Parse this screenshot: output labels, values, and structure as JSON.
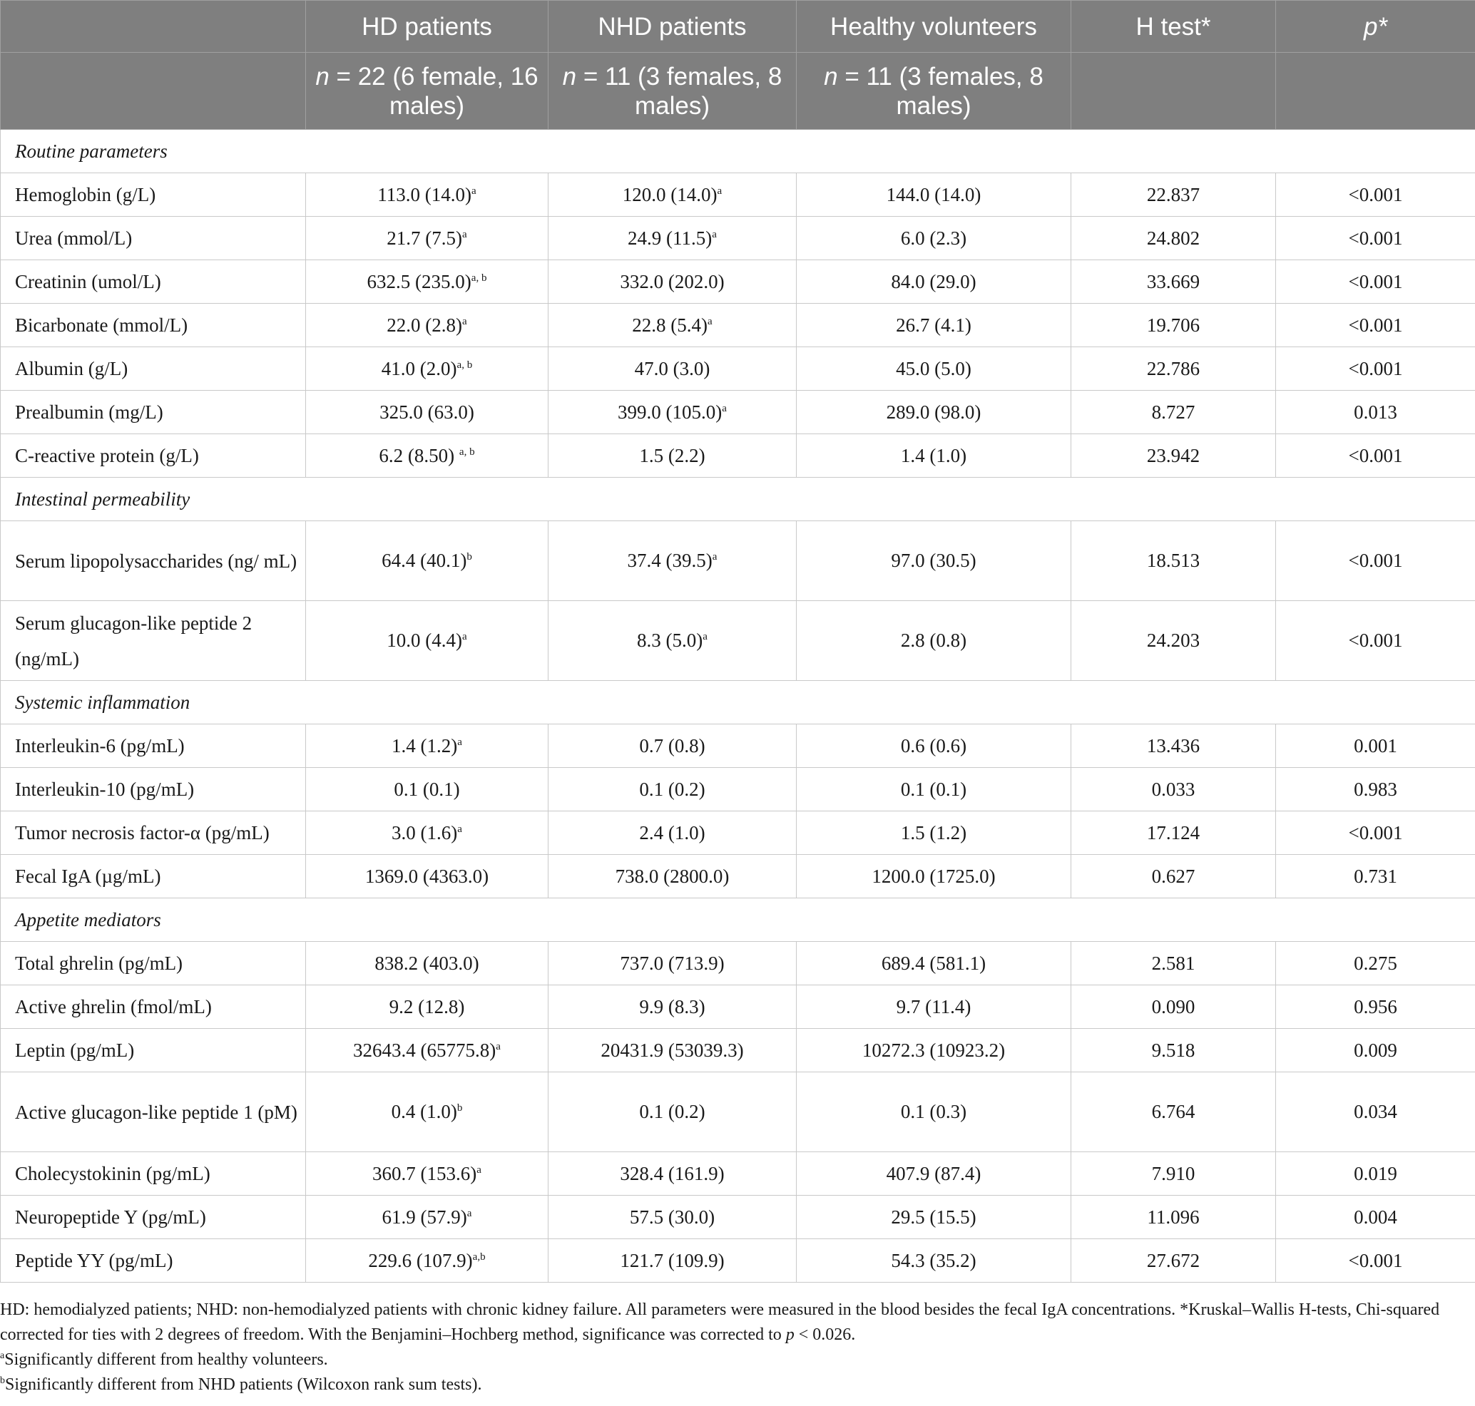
{
  "columns": {
    "row1": [
      "",
      "HD patients",
      "NHD patients",
      "Healthy volunteers",
      "H test*",
      "p*"
    ],
    "row2": [
      {
        "n": "n",
        "rest": " = 22 (6 female, 16 males)"
      },
      {
        "n": "n",
        "rest": " = 11 (3 females, 8 males)"
      },
      {
        "n": "n",
        "rest": " = 11 (3 females, 8 males)"
      }
    ]
  },
  "sections": [
    {
      "title": "Routine parameters",
      "rows": [
        {
          "label": "Hemoglobin (g/L)",
          "hd": "113.0 (14.0)",
          "hd_sup": "a",
          "nhd": "120.0 (14.0)",
          "nhd_sup": "a",
          "hv": "144.0 (14.0)",
          "h": "22.837",
          "p": "<0.001"
        },
        {
          "label": "Urea (mmol/L)",
          "hd": "21.7 (7.5)",
          "hd_sup": "a",
          "nhd": "24.9 (11.5)",
          "nhd_sup": "a",
          "hv": "6.0 (2.3)",
          "h": "24.802",
          "p": "<0.001"
        },
        {
          "label": "Creatinin (umol/L)",
          "hd": "632.5 (235.0)",
          "hd_sup": "a, b",
          "nhd": "332.0 (202.0)",
          "nhd_sup": "",
          "hv": "84.0 (29.0)",
          "h": "33.669",
          "p": "<0.001"
        },
        {
          "label": "Bicarbonate (mmol/L)",
          "hd": "22.0 (2.8)",
          "hd_sup": "a",
          "nhd": "22.8 (5.4)",
          "nhd_sup": "a",
          "hv": "26.7 (4.1)",
          "h": "19.706",
          "p": "<0.001"
        },
        {
          "label": "Albumin (g/L)",
          "hd": "41.0 (2.0)",
          "hd_sup": "a, b",
          "nhd": "47.0 (3.0)",
          "nhd_sup": "",
          "hv": "45.0 (5.0)",
          "h": "22.786",
          "p": "<0.001"
        },
        {
          "label": "Prealbumin (mg/L)",
          "hd": "325.0 (63.0)",
          "hd_sup": "",
          "nhd": "399.0 (105.0)",
          "nhd_sup": "a",
          "hv": "289.0 (98.0)",
          "h": "8.727",
          "p": "0.013"
        },
        {
          "label": "C-reactive protein (g/L)",
          "hd": "6.2 (8.50) ",
          "hd_sup": "a, b",
          "nhd": "1.5 (2.2)",
          "nhd_sup": "",
          "hv": "1.4 (1.0)",
          "h": "23.942",
          "p": "<0.001"
        }
      ]
    },
    {
      "title": "Intestinal permeability",
      "rows": [
        {
          "label": "Serum lipopolysaccharides (ng/ mL)",
          "tall": true,
          "hd": "64.4 (40.1)",
          "hd_sup": "b",
          "nhd": "37.4 (39.5)",
          "nhd_sup": "a",
          "hv": "97.0 (30.5)",
          "h": "18.513",
          "p": "<0.001"
        },
        {
          "label": "Serum glucagon-like peptide 2 (ng/mL)",
          "tall": true,
          "hd": "10.0 (4.4)",
          "hd_sup": "a",
          "nhd": "8.3 (5.0)",
          "nhd_sup": "a",
          "hv": "2.8 (0.8)",
          "h": "24.203",
          "p": "<0.001"
        }
      ]
    },
    {
      "title": "Systemic inflammation",
      "rows": [
        {
          "label": "Interleukin-6 (pg/mL)",
          "hd": "1.4 (1.2)",
          "hd_sup": "a",
          "nhd": "0.7 (0.8)",
          "nhd_sup": "",
          "hv": "0.6 (0.6)",
          "h": "13.436",
          "p": "0.001"
        },
        {
          "label": "Interleukin-10 (pg/mL)",
          "hd": "0.1 (0.1)",
          "hd_sup": "",
          "nhd": "0.1 (0.2)",
          "nhd_sup": "",
          "hv": "0.1 (0.1)",
          "h": "0.033",
          "p": "0.983"
        },
        {
          "label": "Tumor necrosis factor-α (pg/mL)",
          "hd": "3.0 (1.6)",
          "hd_sup": "a",
          "nhd": "2.4 (1.0)",
          "nhd_sup": "",
          "hv": "1.5 (1.2)",
          "h": "17.124",
          "p": "<0.001"
        },
        {
          "label": "Fecal IgA (µg/mL)",
          "hd": "1369.0 (4363.0)",
          "hd_sup": "",
          "nhd": "738.0 (2800.0)",
          "nhd_sup": "",
          "hv": "1200.0 (1725.0)",
          "h": "0.627",
          "p": "0.731"
        }
      ]
    },
    {
      "title": "Appetite mediators",
      "rows": [
        {
          "label": "Total ghrelin (pg/mL)",
          "hd": "838.2 (403.0)",
          "hd_sup": "",
          "nhd": "737.0 (713.9)",
          "nhd_sup": "",
          "hv": "689.4 (581.1)",
          "h": "2.581",
          "p": "0.275"
        },
        {
          "label": "Active ghrelin (fmol/mL)",
          "hd": "9.2 (12.8)",
          "hd_sup": "",
          "nhd": "9.9 (8.3)",
          "nhd_sup": "",
          "hv": "9.7 (11.4)",
          "h": "0.090",
          "p": "0.956"
        },
        {
          "label": "Leptin (pg/mL)",
          "hd": "32643.4 (65775.8)",
          "hd_sup": "a",
          "nhd": "20431.9 (53039.3)",
          "nhd_sup": "",
          "hv": "10272.3 (10923.2)",
          "h": "9.518",
          "p": "0.009"
        },
        {
          "label": "Active glucagon-like peptide 1 (pM)",
          "tall": true,
          "hd": "0.4 (1.0)",
          "hd_sup": "b",
          "nhd": "0.1 (0.2)",
          "nhd_sup": "",
          "hv": "0.1 (0.3)",
          "h": "6.764",
          "p": "0.034"
        },
        {
          "label": "Cholecystokinin (pg/mL)",
          "hd": "360.7 (153.6)",
          "hd_sup": "a",
          "nhd": "328.4 (161.9)",
          "nhd_sup": "",
          "hv": "407.9 (87.4)",
          "h": "7.910",
          "p": "0.019"
        },
        {
          "label": "Neuropeptide Y (pg/mL)",
          "hd": "61.9 (57.9)",
          "hd_sup": "a",
          "nhd": "57.5 (30.0)",
          "nhd_sup": "",
          "hv": "29.5 (15.5)",
          "h": "11.096",
          "p": "0.004"
        },
        {
          "label": "Peptide YY (pg/mL)",
          "hd": "229.6 (107.9)",
          "hd_sup": "a,b",
          "nhd": "121.7 (109.9)",
          "nhd_sup": "",
          "hv": "54.3 (35.2)",
          "h": "27.672",
          "p": "<0.001"
        }
      ]
    }
  ],
  "footnotes": {
    "main_before": "HD: hemodialyzed patients; NHD: non-hemodialyzed patients with chronic kidney failure. All parameters were measured in the blood besides the fecal IgA concentrations. *Kruskal–Wallis H-tests, Chi-squared corrected for ties with 2 degrees of freedom. With the Benjamini–Hochberg method, significance was corrected to ",
    "main_p": "p",
    "main_after": " < 0.026.",
    "a_mark": "a",
    "a_text": "Significantly different from healthy volunteers.",
    "b_mark": "b",
    "b_text": "Significantly different from NHD patients (Wilcoxon rank sum tests)."
  }
}
